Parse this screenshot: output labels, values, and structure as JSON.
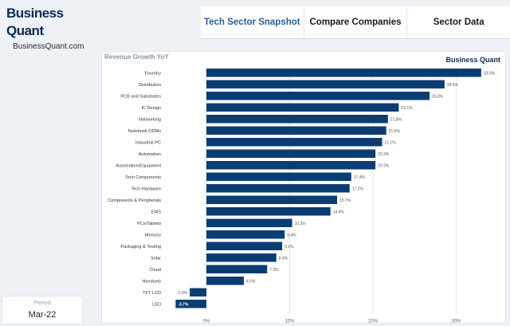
{
  "brand": {
    "name": "Business Quant",
    "site": "BusinessQuant.com"
  },
  "tabs": [
    {
      "label": "Tech Sector Snapshot",
      "active": true
    },
    {
      "label": "Compare Companies",
      "active": false
    },
    {
      "label": "Sector Data",
      "active": false
    }
  ],
  "period": {
    "label": "Period",
    "value": "Mar-22"
  },
  "colors": {
    "bar": "#0b3d73",
    "accent": "#1f5fa0",
    "brand": "#0d2b57"
  },
  "chart_data": {
    "type": "bar",
    "orientation": "horizontal",
    "title": "Revenue Growth YoY",
    "watermark": "Business Quant",
    "categories": [
      "Foundry",
      "Distribution",
      "PCB and Substrates",
      "IC Design",
      "Networking",
      "Notebook ODMs",
      "Industrial PC",
      "Automation",
      "Automation/Equipment",
      "Tech Components",
      "Tech Hardware",
      "Components & Peripherals",
      "EMS",
      "PCs/Tablets",
      "Memory",
      "Packaging & Testing",
      "Solar",
      "Cloud",
      "Handsets",
      "TFT LCD",
      "LED"
    ],
    "values": [
      33.0,
      28.6,
      26.8,
      23.1,
      21.8,
      21.6,
      21.1,
      20.3,
      20.3,
      17.4,
      17.2,
      15.7,
      14.9,
      10.3,
      9.4,
      9.1,
      8.4,
      7.3,
      4.5,
      -2.0,
      -3.7
    ],
    "data_labels": [
      "33.0%",
      "28.6%",
      "26.8%",
      "23.1%",
      "21.8%",
      "21.6%",
      "21.1%",
      "20.3%",
      "20.3%",
      "17.4%",
      "17.2%",
      "15.7%",
      "14.9%",
      "10.3%",
      "9.4%",
      "9.1%",
      "8.4%",
      "7.3%",
      "4.5%",
      "-2.0%",
      "-3.7%"
    ],
    "xticks": [
      0,
      10,
      20,
      30
    ],
    "xtick_labels": [
      "0%",
      "10%",
      "20%",
      "30%"
    ],
    "xlim": [
      -4.5,
      34
    ],
    "grid": true,
    "xlabel": "",
    "ylabel": ""
  }
}
